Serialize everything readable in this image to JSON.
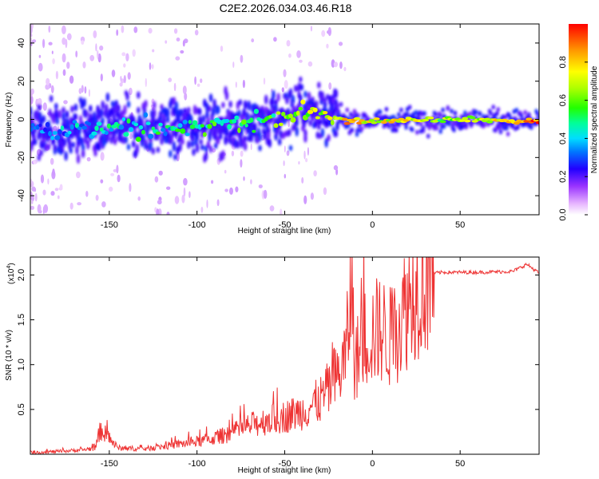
{
  "title": "C2E2.2026.034.03.46.R18",
  "chart_data": [
    {
      "type": "heatmap",
      "xlabel": "Height of straight line (km)",
      "ylabel": "Frequency (Hz)",
      "xlim": [
        -195,
        95
      ],
      "ylim": [
        -50,
        50
      ],
      "xticks": [
        -150,
        -100,
        -50,
        0,
        50
      ],
      "xtick_labels": [
        "-150",
        "-100",
        "-50",
        "0",
        "50"
      ],
      "yticks": [
        -40,
        -20,
        0,
        20,
        40
      ],
      "ytick_labels": [
        "-40",
        "-20",
        "0",
        "20",
        "40"
      ],
      "ridge": {
        "x": [
          -195,
          -170,
          -150,
          -130,
          -110,
          -90,
          -70,
          -55,
          -45,
          -35,
          -28,
          -20,
          -15,
          -10,
          0,
          20,
          40,
          60,
          80,
          95
        ],
        "y": [
          -7,
          -6,
          -5,
          -4,
          -4,
          -3,
          -2,
          0,
          3,
          4,
          3,
          1,
          -1,
          -1,
          -1,
          0,
          0,
          0,
          -1,
          -1
        ],
        "amplitude": [
          0.3,
          0.35,
          0.4,
          0.45,
          0.45,
          0.5,
          0.5,
          0.55,
          0.6,
          0.65,
          0.7,
          0.75,
          0.8,
          0.85,
          0.7,
          0.75,
          0.6,
          0.65,
          0.8,
          0.95
        ]
      },
      "colorbar": {
        "label": "Normalized spectral amplitude",
        "range": [
          0,
          1
        ],
        "ticks": [
          0.0,
          0.2,
          0.4,
          0.6,
          0.8
        ],
        "tick_labels": [
          "0.0",
          "0.2",
          "0.4",
          "0.6",
          "0.8"
        ],
        "colors": [
          "#ffffff",
          "#cc66ff",
          "#6600ff",
          "#0000ff",
          "#00aaff",
          "#00ffcc",
          "#00ff00",
          "#aaff00",
          "#ffff00",
          "#ff9900",
          "#ff0000"
        ]
      }
    },
    {
      "type": "line",
      "xlabel": "Height of straight line (km)",
      "ylabel": "SNR (10 * v/v)",
      "scale_label": "(x10",
      "scale_exponent": "4",
      "scale_suffix": ")",
      "xlim": [
        -195,
        95
      ],
      "ylim": [
        0,
        2.2
      ],
      "xticks": [
        -150,
        -100,
        -50,
        0,
        50
      ],
      "xtick_labels": [
        "-150",
        "-100",
        "-50",
        "0",
        "50"
      ],
      "yticks": [
        0.5,
        1.0,
        1.5,
        2.0
      ],
      "ytick_labels": [
        "0.5",
        "1.0",
        "1.5",
        "2.0"
      ],
      "series": [
        {
          "name": "SNR",
          "color": "#ee3333",
          "x": [
            -195,
            -180,
            -165,
            -158,
            -155,
            -145,
            -130,
            -115,
            -100,
            -90,
            -80,
            -70,
            -60,
            -50,
            -40,
            -30,
            -20,
            -15,
            -12,
            -10,
            -5,
            0,
            5,
            10,
            15,
            20,
            25,
            30,
            35,
            40,
            60,
            80,
            88,
            95
          ],
          "y": [
            0.02,
            0.03,
            0.05,
            0.07,
            0.28,
            0.07,
            0.06,
            0.1,
            0.14,
            0.18,
            0.24,
            0.32,
            0.38,
            0.42,
            0.48,
            0.6,
            0.85,
            1.1,
            1.9,
            1.0,
            1.3,
            1.35,
            1.4,
            1.3,
            1.45,
            1.7,
            1.9,
            1.97,
            2.02,
            2.03,
            2.03,
            2.04,
            2.12,
            2.02
          ]
        }
      ]
    }
  ]
}
